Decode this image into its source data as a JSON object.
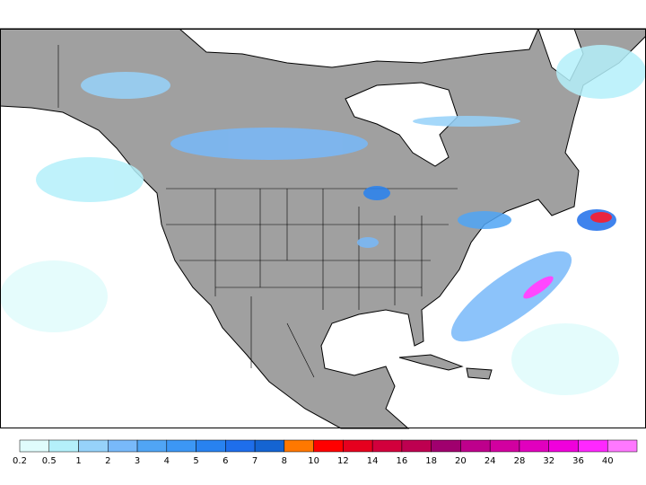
{
  "legend": {
    "labels": [
      0.2,
      0.5,
      1,
      2,
      3,
      4,
      5,
      6,
      7,
      8,
      10,
      12,
      14,
      16,
      18,
      20,
      24,
      28,
      32,
      36,
      40
    ],
    "colors": [
      "#e0fcfc",
      "#b4f0fa",
      "#96d2fa",
      "#78b9fa",
      "#50a5f5",
      "#3c97f5",
      "#2882f0",
      "#1e6eeb",
      "#1464d2",
      "#ff7800",
      "#ff0000",
      "#e6001e",
      "#d2003c",
      "#be0050",
      "#a0006e",
      "#be008c",
      "#d200a0",
      "#e100be",
      "#f000dc",
      "#ff28ff",
      "#ff78ff"
    ]
  }
}
